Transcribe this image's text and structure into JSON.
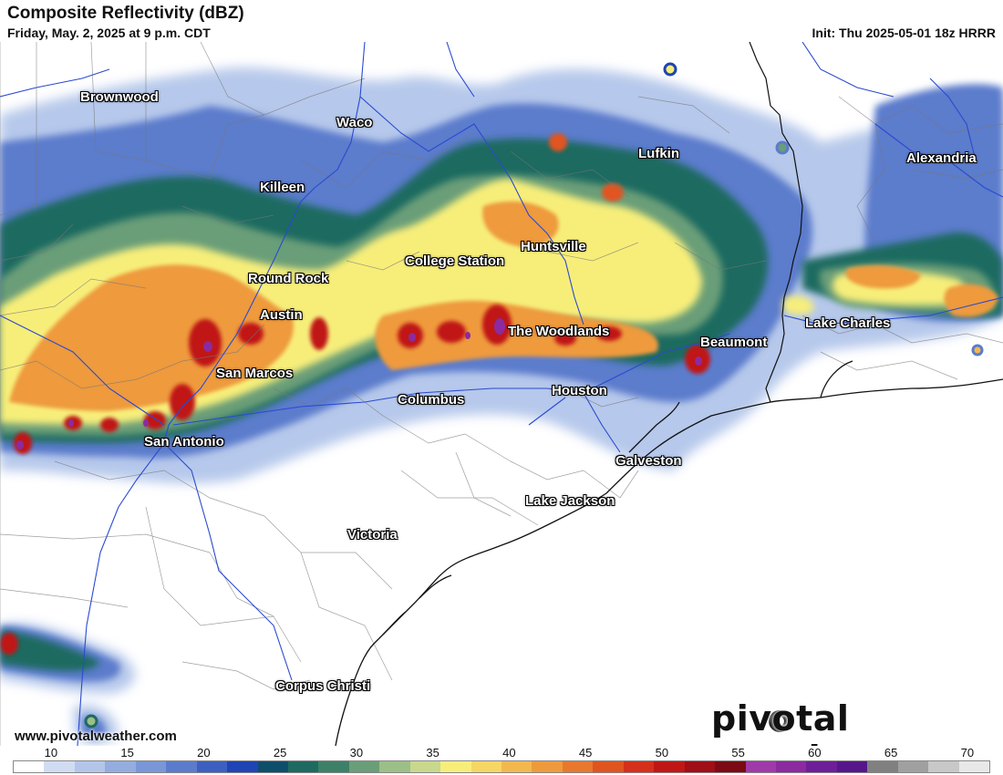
{
  "header": {
    "title": "Composite Reflectivity (dBZ)",
    "valid_time": "Friday, May. 2, 2025 at 9 p.m. CDT",
    "init": "Init: Thu 2025-05-01 18z HRRR"
  },
  "cities": [
    {
      "name": "Brownwood"
    },
    {
      "name": "Waco"
    },
    {
      "name": "Lufkin"
    },
    {
      "name": "Alexandria"
    },
    {
      "name": "Killeen"
    },
    {
      "name": "Huntsville"
    },
    {
      "name": "College Station"
    },
    {
      "name": "Round Rock"
    },
    {
      "name": "Austin"
    },
    {
      "name": "Lake Charles"
    },
    {
      "name": "The Woodlands"
    },
    {
      "name": "Beaumont"
    },
    {
      "name": "San Marcos"
    },
    {
      "name": "Columbus"
    },
    {
      "name": "Houston"
    },
    {
      "name": "San Antonio"
    },
    {
      "name": "Galveston"
    },
    {
      "name": "Lake Jackson"
    },
    {
      "name": "Victoria"
    },
    {
      "name": "Corpus Christi"
    }
  ],
  "footer": {
    "website": "www.pivotalweather.com",
    "logo": "pivotal weather"
  },
  "legend": {
    "ticks": [
      "10",
      "15",
      "20",
      "25",
      "30",
      "35",
      "40",
      "45",
      "50",
      "55",
      "60",
      "65",
      "70"
    ],
    "colors": [
      "#ffffff",
      "#d0dcf2",
      "#b3c6ea",
      "#95acdf",
      "#7a96d6",
      "#5b7ccc",
      "#3d60c0",
      "#1f44b4",
      "#0e4e6b",
      "#1f6a60",
      "#3d8068",
      "#6a9e78",
      "#9cbf88",
      "#c8d88c",
      "#f7ee7a",
      "#f6d664",
      "#f2b84e",
      "#ee9a3c",
      "#e8782e",
      "#e05420",
      "#d4301c",
      "#c01616",
      "#a00e16",
      "#7c0a14",
      "#a03aa8",
      "#8c2aa0",
      "#6e1e98",
      "#56168a",
      "#808080",
      "#a0a0a0",
      "#c8c8c8",
      "#e8e8e8"
    ]
  },
  "colors": {
    "accent_heavy": "#c01616",
    "accent_moderate": "#f2b84e",
    "accent_light": "#5b7ccc",
    "coast": "#000000",
    "rivers": "#2a4ad0"
  }
}
